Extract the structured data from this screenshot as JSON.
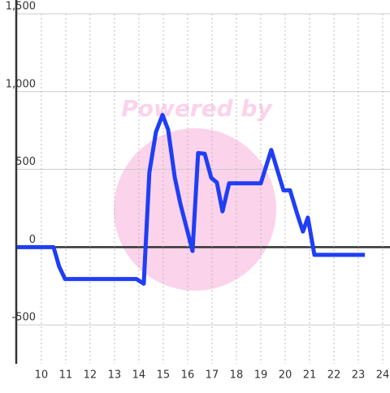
{
  "chart_data": {
    "type": "line",
    "watermark": "Powered by",
    "x": [
      8.97,
      10.5,
      10.73,
      10.97,
      13.9,
      14.2,
      14.43,
      14.7,
      14.97,
      15.2,
      15.47,
      15.7,
      16.2,
      16.43,
      16.7,
      16.97,
      17.2,
      17.43,
      17.7,
      19.0,
      19.43,
      19.93,
      20.2,
      20.5,
      20.73,
      20.93,
      21.2,
      23.27
    ],
    "series": [
      {
        "color": "#1f3ef5",
        "values": [
          0,
          0,
          -125,
          -205,
          -205,
          -235,
          480,
          740,
          850,
          755,
          450,
          280,
          -25,
          605,
          600,
          445,
          415,
          230,
          410,
          410,
          625,
          365,
          365,
          210,
          100,
          190,
          -50,
          -50
        ]
      }
    ],
    "xlim": [
      8.97,
      24.3
    ],
    "xticks": [
      10,
      11,
      12,
      13,
      14,
      15,
      16,
      17,
      18,
      19,
      20,
      21,
      22,
      23,
      24
    ],
    "ylim": [
      -750,
      1500
    ],
    "yticks": [
      {
        "value": -500,
        "label": "-500"
      },
      0,
      500,
      {
        "value": 1000,
        "label": "1,000"
      },
      {
        "value": 1500,
        "label": "1,500"
      }
    ],
    "grid": true
  }
}
